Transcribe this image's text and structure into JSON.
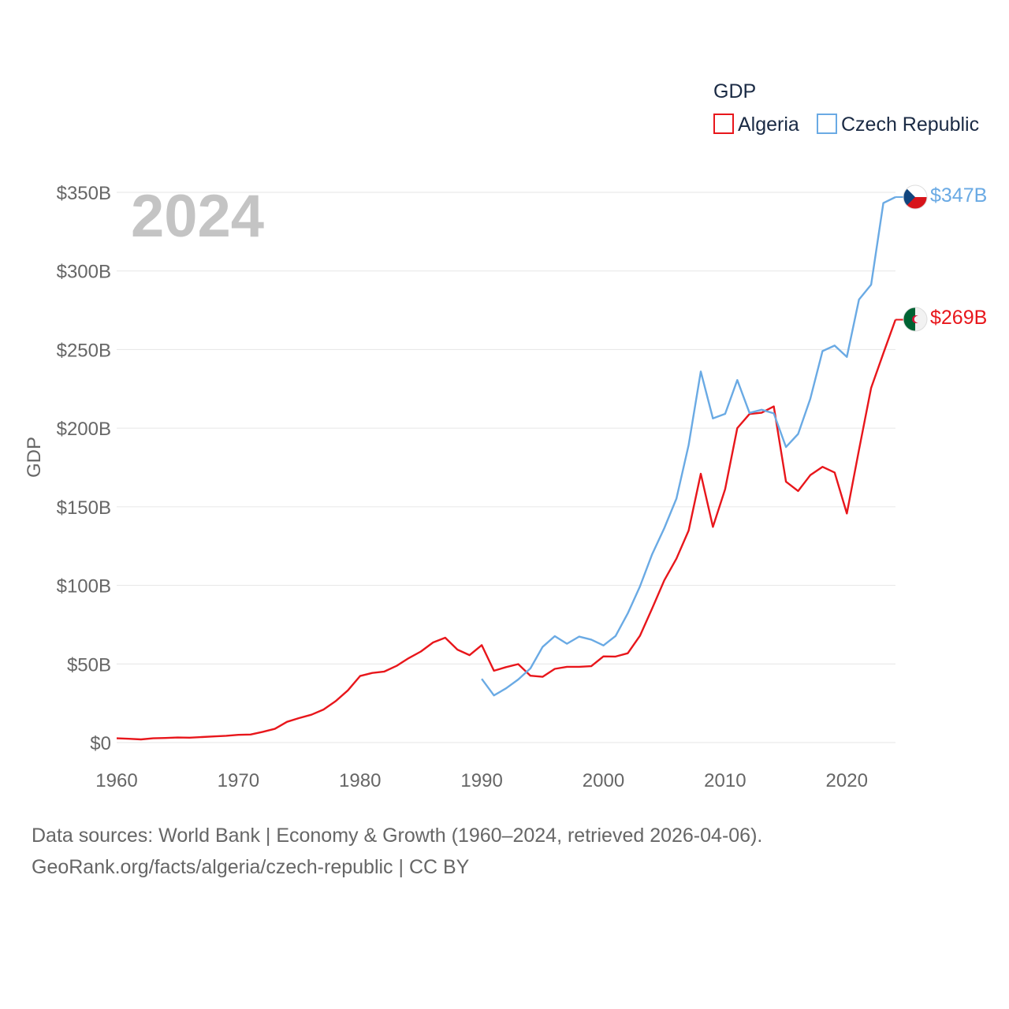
{
  "chart_data": {
    "type": "line",
    "title": "",
    "watermark_year": "2024",
    "legend_title": "GDP",
    "ylabel": "GDP",
    "xlabel": "",
    "xlim": [
      1960,
      2024
    ],
    "ylim": [
      0,
      350
    ],
    "y_ticks": [
      0,
      50,
      100,
      150,
      200,
      250,
      300,
      350
    ],
    "y_tick_labels": [
      "$0",
      "$50B",
      "$100B",
      "$150B",
      "$200B",
      "$250B",
      "$300B",
      "$350B"
    ],
    "x_ticks": [
      1960,
      1970,
      1980,
      1990,
      2000,
      2010,
      2020
    ],
    "x_tick_labels": [
      "1960",
      "1970",
      "1980",
      "1990",
      "2000",
      "2010",
      "2020"
    ],
    "series": [
      {
        "name": "Algeria",
        "color": "#e8161b",
        "end_label": "$269B",
        "flag_icon": "algeria-flag-icon",
        "x": [
          1960,
          1961,
          1962,
          1963,
          1964,
          1965,
          1966,
          1967,
          1968,
          1969,
          1970,
          1971,
          1972,
          1973,
          1974,
          1975,
          1976,
          1977,
          1978,
          1979,
          1980,
          1981,
          1982,
          1983,
          1984,
          1985,
          1986,
          1987,
          1988,
          1989,
          1990,
          1991,
          1992,
          1993,
          1994,
          1995,
          1996,
          1997,
          1998,
          1999,
          2000,
          2001,
          2002,
          2003,
          2004,
          2005,
          2006,
          2007,
          2008,
          2009,
          2010,
          2011,
          2012,
          2013,
          2014,
          2015,
          2016,
          2017,
          2018,
          2019,
          2020,
          2021,
          2022,
          2023,
          2024
        ],
        "values": [
          2.7,
          2.4,
          2.0,
          2.7,
          2.9,
          3.2,
          3.1,
          3.5,
          3.9,
          4.3,
          4.9,
          5.1,
          6.8,
          8.7,
          13.2,
          15.6,
          17.7,
          21.0,
          26.4,
          33.2,
          42.3,
          44.3,
          45.2,
          48.8,
          53.7,
          57.9,
          63.7,
          66.7,
          59.1,
          55.6,
          62.0,
          45.7,
          48.0,
          49.9,
          42.5,
          41.8,
          46.9,
          48.2,
          48.2,
          48.6,
          54.8,
          54.7,
          56.8,
          67.9,
          85.3,
          103.2,
          117.0,
          134.9,
          171.0,
          137.2,
          161.2,
          200.0,
          209.0,
          209.8,
          213.8,
          165.9,
          160.0,
          170.1,
          175.4,
          171.8,
          145.7,
          186.2,
          225.6,
          247.6,
          269.0
        ]
      },
      {
        "name": "Czech Republic",
        "color": "#6aaae4",
        "end_label": "$347B",
        "flag_icon": "czech-republic-flag-icon",
        "x": [
          1990,
          1991,
          1992,
          1993,
          1994,
          1995,
          1996,
          1997,
          1998,
          1999,
          2000,
          2001,
          2002,
          2003,
          2004,
          2005,
          2006,
          2007,
          2008,
          2009,
          2010,
          2011,
          2012,
          2013,
          2014,
          2015,
          2016,
          2017,
          2018,
          2019,
          2020,
          2021,
          2022,
          2023,
          2024
        ],
        "values": [
          40.5,
          30.0,
          34.5,
          40.1,
          47.2,
          60.8,
          67.7,
          62.9,
          67.4,
          65.5,
          61.8,
          67.8,
          82.2,
          99.3,
          119.8,
          136.4,
          155.2,
          189.3,
          236.0,
          206.2,
          209.1,
          230.6,
          209.7,
          211.7,
          209.4,
          188.0,
          196.3,
          218.6,
          249.0,
          252.5,
          245.3,
          281.8,
          291.3,
          343.2,
          347.0
        ]
      }
    ]
  },
  "footer": {
    "line1": "Data sources: World Bank | Economy & Growth (1960–2024, retrieved 2026-04-06).",
    "line2": "GeoRank.org/facts/algeria/czech-republic | CC BY"
  }
}
